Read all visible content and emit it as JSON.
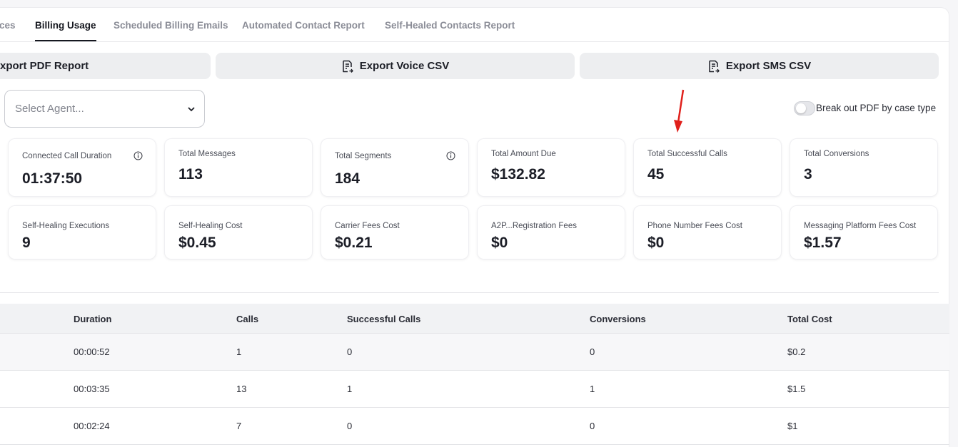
{
  "tabs": [
    {
      "label": "ces",
      "active": false
    },
    {
      "label": "Billing Usage",
      "active": true
    },
    {
      "label": "Scheduled Billing Emails",
      "active": false
    },
    {
      "label": "Automated Contact Report",
      "active": false
    },
    {
      "label": "Self-Healed Contacts Report",
      "active": false
    }
  ],
  "exports": {
    "pdf_label": "xport PDF Report",
    "voice_label": "Export Voice CSV",
    "sms_label": "Export SMS CSV"
  },
  "agent_select": {
    "placeholder": "Select Agent..."
  },
  "toggle": {
    "label": "Break out PDF by case type",
    "on": false
  },
  "annotation_color": "#e0201b",
  "stats_row1": [
    {
      "label": "Connected Call Duration",
      "value": "01:37:50",
      "info": true
    },
    {
      "label": "Total Messages",
      "value": "113",
      "info": false
    },
    {
      "label": "Total Segments",
      "value": "184",
      "info": true
    },
    {
      "label": "Total Amount Due",
      "value": "$132.82",
      "info": false
    },
    {
      "label": "Total Successful Calls",
      "value": "45",
      "info": false
    },
    {
      "label": "Total Conversions",
      "value": "3",
      "info": false
    }
  ],
  "stats_row2": [
    {
      "label": "Self-Healing Executions",
      "value": "9"
    },
    {
      "label": "Self-Healing Cost",
      "value": "$0.45"
    },
    {
      "label": "Carrier Fees Cost",
      "value": "$0.21"
    },
    {
      "label": "A2P...Registration Fees",
      "value": "$0"
    },
    {
      "label": "Phone Number Fees Cost",
      "value": "$0"
    },
    {
      "label": "Messaging Platform Fees Cost",
      "value": "$1.57"
    }
  ],
  "table": {
    "headers": [
      "Duration",
      "Calls",
      "Successful Calls",
      "Conversions",
      "Total Cost"
    ],
    "rows": [
      [
        "00:00:52",
        "1",
        "0",
        "0",
        "$0.2"
      ],
      [
        "00:03:35",
        "13",
        "1",
        "1",
        "$1.5"
      ],
      [
        "00:02:24",
        "7",
        "0",
        "0",
        "$1"
      ]
    ]
  }
}
